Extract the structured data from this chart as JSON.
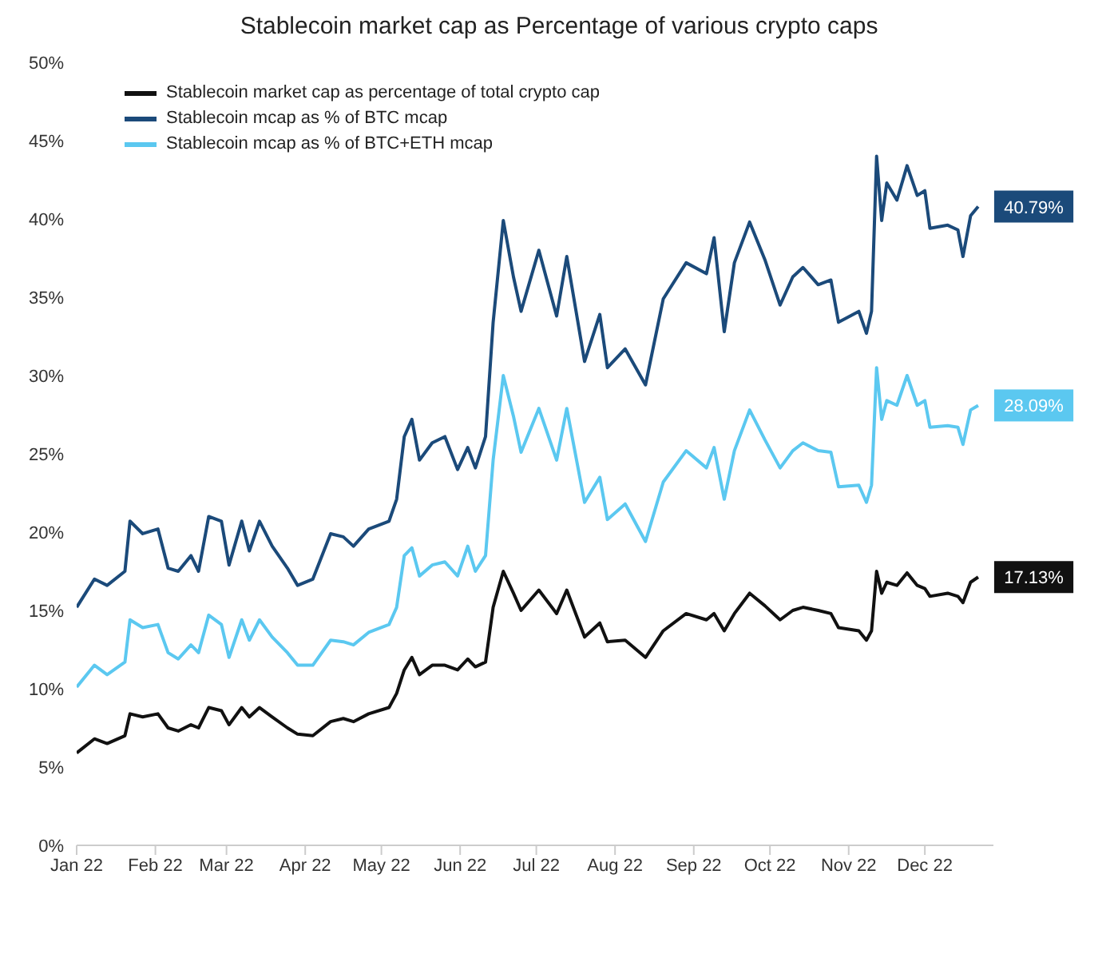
{
  "chart_data": {
    "type": "line",
    "title": "Stablecoin market cap as Percentage of various crypto caps",
    "x": [
      "2022-01-01",
      "2022-01-08",
      "2022-01-13",
      "2022-01-20",
      "2022-01-22",
      "2022-01-27",
      "2022-02-02",
      "2022-02-06",
      "2022-02-10",
      "2022-02-15",
      "2022-02-18",
      "2022-02-22",
      "2022-02-27",
      "2022-03-02",
      "2022-03-07",
      "2022-03-10",
      "2022-03-14",
      "2022-03-19",
      "2022-03-25",
      "2022-03-29",
      "2022-04-04",
      "2022-04-11",
      "2022-04-16",
      "2022-04-20",
      "2022-04-26",
      "2022-05-04",
      "2022-05-07",
      "2022-05-10",
      "2022-05-13",
      "2022-05-16",
      "2022-05-21",
      "2022-05-26",
      "2022-05-31",
      "2022-06-04",
      "2022-06-07",
      "2022-06-11",
      "2022-06-14",
      "2022-06-18",
      "2022-06-22",
      "2022-06-25",
      "2022-07-02",
      "2022-07-09",
      "2022-07-13",
      "2022-07-20",
      "2022-07-26",
      "2022-07-29",
      "2022-08-05",
      "2022-08-13",
      "2022-08-20",
      "2022-08-29",
      "2022-09-06",
      "2022-09-09",
      "2022-09-13",
      "2022-09-17",
      "2022-09-23",
      "2022-09-29",
      "2022-10-05",
      "2022-10-10",
      "2022-10-14",
      "2022-10-20",
      "2022-10-25",
      "2022-10-28",
      "2022-11-05",
      "2022-11-08",
      "2022-11-10",
      "2022-11-12",
      "2022-11-14",
      "2022-11-16",
      "2022-11-20",
      "2022-11-24",
      "2022-11-28",
      "2022-12-01",
      "2022-12-03",
      "2022-12-10",
      "2022-12-14",
      "2022-12-16",
      "2022-12-19",
      "2022-12-22"
    ],
    "series": [
      {
        "name": "Stablecoin market cap as percentage of total crypto cap",
        "color": "#111111",
        "values": [
          5.9,
          6.8,
          6.5,
          7.0,
          8.4,
          8.2,
          8.4,
          7.5,
          7.3,
          7.7,
          7.5,
          8.8,
          8.6,
          7.7,
          8.8,
          8.2,
          8.8,
          8.2,
          7.5,
          7.1,
          7.0,
          7.9,
          8.1,
          7.9,
          8.4,
          8.8,
          9.7,
          11.2,
          12.0,
          10.9,
          11.5,
          11.5,
          11.2,
          11.9,
          11.4,
          11.7,
          15.2,
          17.5,
          16.1,
          15.0,
          16.3,
          14.8,
          16.3,
          13.3,
          14.2,
          13.0,
          13.1,
          12.0,
          13.7,
          14.8,
          14.4,
          14.8,
          13.7,
          14.8,
          16.1,
          15.3,
          14.4,
          15.0,
          15.2,
          15.0,
          14.8,
          13.9,
          13.7,
          13.1,
          13.7,
          17.5,
          16.1,
          16.8,
          16.6,
          17.4,
          16.6,
          16.4,
          15.9,
          16.1,
          15.9,
          15.5,
          16.8,
          17.13
        ],
        "value_labels": [
          null,
          null,
          null,
          null,
          null,
          null,
          null,
          null,
          null,
          null,
          null,
          null,
          null,
          null,
          null,
          null,
          null,
          null,
          null,
          null,
          null,
          null,
          null,
          null,
          null,
          null,
          null,
          null,
          null,
          null,
          null,
          null,
          null,
          null,
          null,
          null,
          null,
          null,
          null,
          null,
          null,
          null,
          null,
          null,
          null,
          null,
          null,
          null,
          null,
          null,
          null,
          null,
          null,
          null,
          null,
          null,
          null,
          null,
          null,
          null,
          null,
          null,
          null,
          null,
          null,
          null,
          null,
          null,
          null,
          null,
          null,
          null,
          null,
          null,
          null,
          null,
          null,
          "17.13%"
        ]
      },
      {
        "name": "Stablecoin mcap as % of BTC mcap",
        "color": "#1b4a7a",
        "values": [
          15.2,
          17.0,
          16.6,
          17.5,
          20.7,
          19.9,
          20.2,
          17.7,
          17.5,
          18.5,
          17.5,
          21.0,
          20.7,
          17.9,
          20.7,
          18.8,
          20.7,
          19.1,
          17.7,
          16.6,
          17.0,
          19.9,
          19.7,
          19.1,
          20.2,
          20.7,
          22.1,
          26.1,
          27.2,
          24.6,
          25.7,
          26.1,
          24.0,
          25.4,
          24.1,
          26.1,
          33.4,
          39.9,
          36.3,
          34.1,
          38.0,
          33.8,
          37.6,
          30.9,
          33.9,
          30.5,
          31.7,
          29.4,
          34.9,
          37.2,
          36.5,
          38.8,
          32.8,
          37.2,
          39.8,
          37.4,
          34.5,
          36.3,
          36.9,
          35.8,
          36.1,
          33.4,
          34.1,
          32.7,
          34.1,
          44.0,
          39.9,
          42.3,
          41.2,
          43.4,
          41.5,
          41.8,
          39.4,
          39.6,
          39.3,
          37.6,
          40.2,
          40.79
        ],
        "value_labels": [
          null,
          null,
          null,
          null,
          null,
          null,
          null,
          null,
          null,
          null,
          null,
          null,
          null,
          null,
          null,
          null,
          null,
          null,
          null,
          null,
          null,
          null,
          null,
          null,
          null,
          null,
          null,
          null,
          null,
          null,
          null,
          null,
          null,
          null,
          null,
          null,
          null,
          null,
          null,
          null,
          null,
          null,
          null,
          null,
          null,
          null,
          null,
          null,
          null,
          null,
          null,
          null,
          null,
          null,
          null,
          null,
          null,
          null,
          null,
          null,
          null,
          null,
          null,
          null,
          null,
          null,
          null,
          null,
          null,
          null,
          null,
          null,
          null,
          null,
          null,
          null,
          null,
          "40.79%"
        ]
      },
      {
        "name": "Stablecoin mcap as % of BTC+ETH mcap",
        "color": "#5bc8f0",
        "values": [
          10.1,
          11.5,
          10.9,
          11.7,
          14.4,
          13.9,
          14.1,
          12.3,
          11.9,
          12.8,
          12.3,
          14.7,
          14.1,
          12.0,
          14.4,
          13.1,
          14.4,
          13.3,
          12.3,
          11.5,
          11.5,
          13.1,
          13.0,
          12.8,
          13.6,
          14.1,
          15.2,
          18.5,
          19.0,
          17.2,
          17.9,
          18.1,
          17.2,
          19.1,
          17.5,
          18.5,
          24.6,
          30.0,
          27.4,
          25.1,
          27.9,
          24.6,
          27.9,
          21.9,
          23.5,
          20.8,
          21.8,
          19.4,
          23.2,
          25.2,
          24.1,
          25.4,
          22.1,
          25.2,
          27.8,
          25.9,
          24.1,
          25.2,
          25.7,
          25.2,
          25.1,
          22.9,
          23.0,
          21.9,
          23.0,
          30.5,
          27.2,
          28.4,
          28.1,
          30.0,
          28.1,
          28.4,
          26.7,
          26.8,
          26.7,
          25.6,
          27.8,
          28.09
        ],
        "value_labels": [
          null,
          null,
          null,
          null,
          null,
          null,
          null,
          null,
          null,
          null,
          null,
          null,
          null,
          null,
          null,
          null,
          null,
          null,
          null,
          null,
          null,
          null,
          null,
          null,
          null,
          null,
          null,
          null,
          null,
          null,
          null,
          null,
          null,
          null,
          null,
          null,
          null,
          null,
          null,
          null,
          null,
          null,
          null,
          null,
          null,
          null,
          null,
          null,
          null,
          null,
          null,
          null,
          null,
          null,
          null,
          null,
          null,
          null,
          null,
          null,
          null,
          null,
          null,
          null,
          null,
          null,
          null,
          null,
          null,
          null,
          null,
          null,
          null,
          null,
          null,
          null,
          null,
          "28.09%"
        ]
      }
    ],
    "xlim": [
      "2022-01-01",
      "2022-12-28"
    ],
    "xticks": [
      {
        "value": "2022-01-01",
        "label": "Jan 22"
      },
      {
        "value": "2022-02-01",
        "label": "Feb 22"
      },
      {
        "value": "2022-03-01",
        "label": "Mar 22"
      },
      {
        "value": "2022-04-01",
        "label": "Apr 22"
      },
      {
        "value": "2022-05-01",
        "label": "May 22"
      },
      {
        "value": "2022-06-01",
        "label": "Jun 22"
      },
      {
        "value": "2022-07-01",
        "label": "Jul 22"
      },
      {
        "value": "2022-08-01",
        "label": "Aug 22"
      },
      {
        "value": "2022-09-01",
        "label": "Sep 22"
      },
      {
        "value": "2022-10-01",
        "label": "Oct 22"
      },
      {
        "value": "2022-11-01",
        "label": "Nov 22"
      },
      {
        "value": "2022-12-01",
        "label": "Dec 22"
      }
    ],
    "ylim": [
      0,
      50
    ],
    "yticks": [
      {
        "value": 0,
        "label": "0%"
      },
      {
        "value": 5,
        "label": "5%"
      },
      {
        "value": 10,
        "label": "10%"
      },
      {
        "value": 15,
        "label": "15%"
      },
      {
        "value": 20,
        "label": "20%"
      },
      {
        "value": 25,
        "label": "25%"
      },
      {
        "value": 30,
        "label": "30%"
      },
      {
        "value": 35,
        "label": "35%"
      },
      {
        "value": 40,
        "label": "40%"
      },
      {
        "value": 45,
        "label": "45%"
      },
      {
        "value": 50,
        "label": "50%"
      }
    ],
    "legend": "top left",
    "grid": false,
    "marker": "none",
    "line_style": "solid"
  }
}
